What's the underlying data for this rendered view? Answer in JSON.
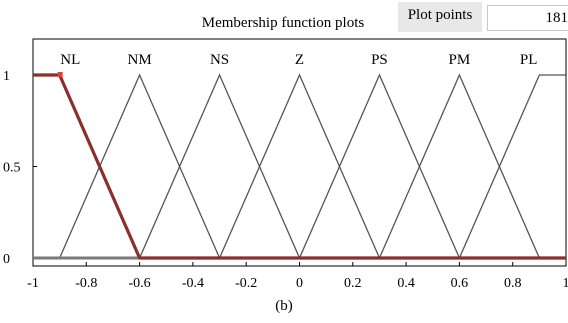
{
  "panel": {
    "title": "Membership function plots",
    "plot_points_label": "Plot points",
    "plot_points_value": "181"
  },
  "caption": "(b)",
  "colors": {
    "line": "#555555",
    "selected": "#8b2e2e",
    "frame": "#000000"
  },
  "chart_data": {
    "type": "line",
    "title": "Membership function plots",
    "xlabel": "",
    "ylabel": "",
    "xlim": [
      -1,
      1
    ],
    "ylim": [
      0,
      1
    ],
    "xticks": [
      -1,
      -0.8,
      -0.6,
      -0.4,
      -0.2,
      0,
      0.2,
      0.4,
      0.6,
      0.8,
      1
    ],
    "xtick_labels": [
      "-1",
      "-0.8",
      "-0.6",
      "-0.4",
      "-0.2",
      "0",
      "0.2",
      "0.4",
      "0.6",
      "0.8",
      "1"
    ],
    "yticks": [
      0,
      0.5,
      1
    ],
    "ytick_labels": [
      "0",
      "0.5",
      "1"
    ],
    "selected_series": "NL",
    "series": [
      {
        "name": "NL",
        "x": [
          -1,
          -0.9,
          -0.6,
          1
        ],
        "y": [
          1,
          1,
          0,
          0
        ]
      },
      {
        "name": "NM",
        "x": [
          -1,
          -0.9,
          -0.6,
          -0.3,
          1
        ],
        "y": [
          0,
          0,
          1,
          0,
          0
        ]
      },
      {
        "name": "NS",
        "x": [
          -1,
          -0.6,
          -0.3,
          0,
          1
        ],
        "y": [
          0,
          0,
          1,
          0,
          0
        ]
      },
      {
        "name": "Z",
        "x": [
          -1,
          -0.3,
          0,
          0.3,
          1
        ],
        "y": [
          0,
          0,
          1,
          0,
          0
        ]
      },
      {
        "name": "PS",
        "x": [
          -1,
          0,
          0.3,
          0.6,
          1
        ],
        "y": [
          0,
          0,
          1,
          0,
          0
        ]
      },
      {
        "name": "PM",
        "x": [
          -1,
          0.3,
          0.6,
          0.9,
          1
        ],
        "y": [
          0,
          0,
          1,
          0,
          0
        ]
      },
      {
        "name": "PL",
        "x": [
          -1,
          0.6,
          0.9,
          1
        ],
        "y": [
          0,
          0,
          1,
          1
        ]
      }
    ],
    "label_x": [
      -0.86,
      -0.6,
      -0.3,
      0,
      0.3,
      0.6,
      0.86
    ]
  }
}
